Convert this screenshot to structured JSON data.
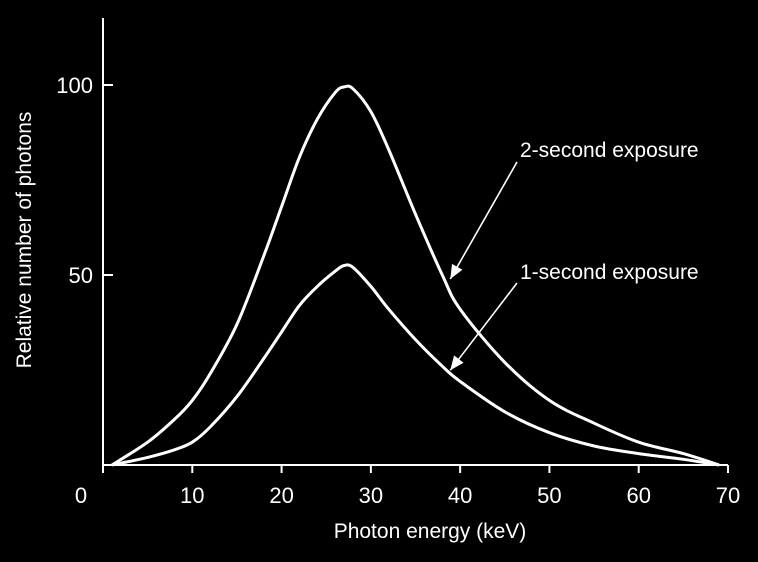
{
  "chart_data": {
    "type": "line",
    "xlabel": "Photon energy (keV)",
    "ylabel": "Relative number of photons",
    "xlim": [
      0,
      70
    ],
    "ylim": [
      0,
      120
    ],
    "xticks": [
      0,
      10,
      20,
      30,
      40,
      50,
      60,
      70
    ],
    "yticks": [
      50,
      100
    ],
    "grid": false,
    "series": [
      {
        "name": "2-second exposure",
        "x": [
          1,
          5,
          8,
          10,
          12,
          15,
          18,
          20,
          22,
          24,
          26,
          27,
          28,
          30,
          32,
          35,
          38,
          40,
          45,
          50,
          55,
          60,
          65,
          69
        ],
        "y": [
          0,
          6,
          12,
          17,
          24,
          37,
          55,
          68,
          81,
          91,
          98,
          99.5,
          99,
          93,
          83,
          66,
          50,
          41,
          27,
          17,
          11,
          6,
          3,
          0
        ]
      },
      {
        "name": "1-second exposure",
        "x": [
          1,
          5,
          8,
          10,
          12,
          15,
          18,
          20,
          22,
          24,
          26,
          27,
          28,
          30,
          32,
          35,
          38,
          40,
          45,
          50,
          55,
          60,
          65,
          69
        ],
        "y": [
          0,
          2,
          4,
          6,
          10,
          18,
          28,
          35,
          42,
          47,
          51,
          52.5,
          52,
          47,
          41,
          33,
          26,
          22,
          14,
          8.5,
          5,
          3,
          1.5,
          0
        ]
      }
    ],
    "annotations": [
      {
        "text": "2-second exposure",
        "target_series": 0,
        "point": [
          38,
          50
        ]
      },
      {
        "text": "1-second exposure",
        "target_series": 1,
        "point": [
          38,
          26
        ]
      }
    ]
  }
}
